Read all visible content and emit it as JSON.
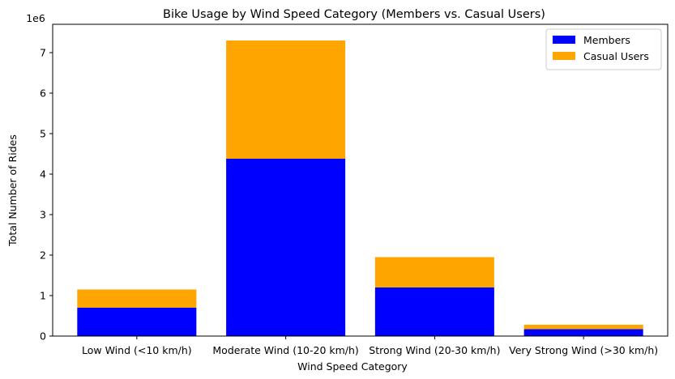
{
  "chart_data": {
    "type": "bar",
    "stacked": true,
    "title": "Bike Usage by Wind Speed Category (Members vs. Casual Users)",
    "xlabel": "Wind Speed Category",
    "ylabel": "Total Number of Rides",
    "y_offset_label": "1e6",
    "categories": [
      "Low Wind (<10 km/h)",
      "Moderate Wind (10-20 km/h)",
      "Strong Wind (20-30 km/h)",
      "Very Strong Wind (>30 km/h)"
    ],
    "series": [
      {
        "name": "Members",
        "color": "#0000ff",
        "values": [
          700000,
          4380000,
          1200000,
          170000
        ]
      },
      {
        "name": "Casual Users",
        "color": "#ffa500",
        "values": [
          450000,
          2920000,
          750000,
          110000
        ]
      }
    ],
    "ylim": [
      0,
      7700000
    ],
    "yticks": [
      0,
      1000000,
      2000000,
      3000000,
      4000000,
      5000000,
      6000000,
      7000000
    ],
    "ytick_labels": [
      "0",
      "1",
      "2",
      "3",
      "4",
      "5",
      "6",
      "7"
    ],
    "grid": false,
    "legend_position": "top-right"
  }
}
